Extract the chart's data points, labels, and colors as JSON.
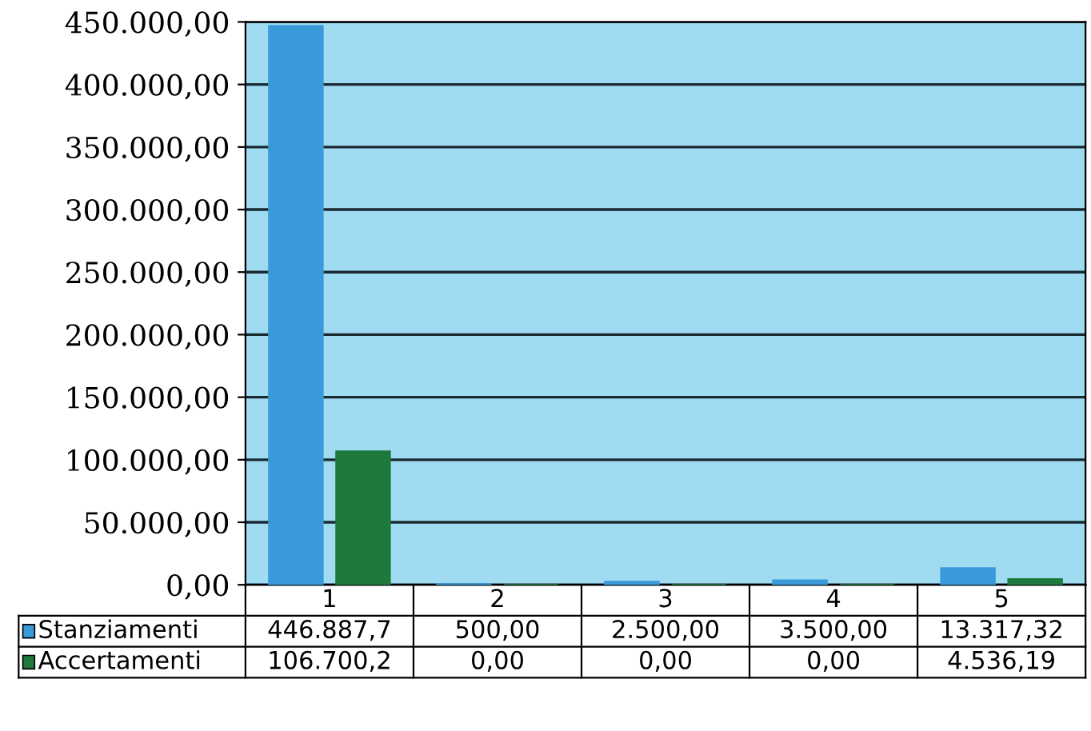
{
  "chart_data": {
    "type": "bar",
    "categories": [
      "1",
      "2",
      "3",
      "4",
      "5"
    ],
    "series": [
      {
        "name": "Stanziamenti",
        "color": "#3a9ad9",
        "values": [
          446887.7,
          500,
          2500,
          3500,
          13317.32
        ],
        "value_labels": [
          "446.887,7",
          "500,00",
          "2.500,00",
          "3.500,00",
          "13.317,32"
        ]
      },
      {
        "name": "Accertamenti",
        "color": "#1e7a3c",
        "values": [
          106700.2,
          0,
          0,
          0,
          4536.19
        ],
        "value_labels": [
          "106.700,2",
          "0,00",
          "0,00",
          "0,00",
          "4.536,19"
        ]
      }
    ],
    "ylim": [
      0,
      450000
    ],
    "yticks": [
      {
        "value": 0,
        "label": "0,00"
      },
      {
        "value": 50000,
        "label": "50.000,00"
      },
      {
        "value": 100000,
        "label": "100.000,00"
      },
      {
        "value": 150000,
        "label": "150.000,00"
      },
      {
        "value": 200000,
        "label": "200.000,00"
      },
      {
        "value": 250000,
        "label": "250.000,00"
      },
      {
        "value": 300000,
        "label": "300.000,00"
      },
      {
        "value": 350000,
        "label": "350.000,00"
      },
      {
        "value": 400000,
        "label": "400.000,00"
      },
      {
        "value": 450000,
        "label": "450.000,00"
      }
    ],
    "grid": "y",
    "legend": "bottom left"
  }
}
